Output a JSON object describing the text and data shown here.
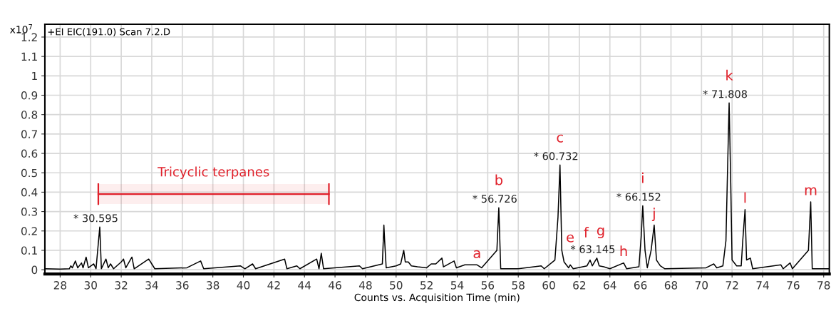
{
  "chart_data": {
    "type": "line",
    "title": "+EI EIC(191.0) Scan 7.2.D",
    "xlabel": "Counts vs. Acquisition Time (min)",
    "ylabel": "x10$^{7}$",
    "xlim": [
      27.0,
      78.37
    ],
    "ylim": [
      -0.022,
      1.266
    ],
    "xticks": [
      28,
      30,
      32,
      34,
      36,
      38,
      40,
      42,
      44,
      46,
      48,
      50,
      52,
      54,
      56,
      58,
      60,
      62,
      64,
      66,
      68,
      70,
      72,
      74,
      76,
      78
    ],
    "yticks": [
      0,
      0.1,
      0.2,
      0.3,
      0.4,
      0.5,
      0.6,
      0.7,
      0.8,
      0.9,
      1,
      1.1,
      1.2
    ],
    "grid": true,
    "marker": "none",
    "line_style": "solid",
    "series": [
      {
        "color": "#000000",
        "x": [
          27.0,
          28.0,
          28.6,
          28.7,
          28.8,
          29.0,
          29.15,
          29.4,
          29.5,
          29.7,
          29.85,
          30.2,
          30.35,
          30.595,
          30.7,
          31.0,
          31.15,
          31.3,
          31.5,
          32.0,
          32.15,
          32.3,
          32.7,
          32.85,
          33.8,
          34.0,
          34.2,
          36.3,
          37.2,
          37.4,
          39.8,
          40.1,
          40.6,
          40.8,
          42.7,
          42.85,
          43.5,
          43.7,
          44.8,
          44.95,
          45.1,
          45.25,
          47.6,
          47.8,
          49.1,
          49.2,
          49.25,
          49.35,
          50.0,
          50.3,
          50.5,
          50.6,
          50.8,
          51.0,
          51.4,
          52.0,
          52.3,
          52.6,
          53.0,
          53.1,
          53.8,
          53.95,
          54.5,
          55.3,
          55.6,
          56.6,
          56.726,
          56.85,
          58.0,
          59.5,
          59.7,
          60.4,
          60.6,
          60.732,
          60.85,
          61.0,
          61.3,
          61.4,
          61.6,
          62.5,
          62.7,
          62.85,
          63.145,
          63.3,
          63.6,
          64.0,
          64.9,
          65.1,
          65.9,
          66.05,
          66.152,
          66.3,
          66.45,
          66.7,
          66.9,
          67.05,
          67.3,
          67.6,
          70.3,
          70.8,
          71.0,
          71.4,
          71.6,
          71.7,
          71.808,
          71.9,
          72.0,
          72.3,
          72.6,
          72.7,
          72.85,
          72.95,
          73.2,
          73.35,
          75.2,
          75.35,
          75.8,
          75.95,
          77.0,
          77.15,
          77.25,
          78.37
        ],
        "values": [
          0.005,
          0.003,
          0.005,
          0.02,
          0.01,
          0.045,
          0.01,
          0.035,
          0.01,
          0.065,
          0.01,
          0.03,
          0.005,
          0.22,
          0.005,
          0.055,
          0.01,
          0.03,
          0.005,
          0.04,
          0.055,
          0.01,
          0.065,
          0.005,
          0.055,
          0.03,
          0.005,
          0.01,
          0.045,
          0.005,
          0.02,
          0.005,
          0.03,
          0.005,
          0.055,
          0.005,
          0.02,
          0.005,
          0.055,
          0.005,
          0.085,
          0.005,
          0.02,
          0.005,
          0.03,
          0.23,
          0.15,
          0.01,
          0.02,
          0.03,
          0.1,
          0.04,
          0.04,
          0.02,
          0.015,
          0.01,
          0.03,
          0.03,
          0.06,
          0.015,
          0.045,
          0.01,
          0.025,
          0.025,
          0.01,
          0.1,
          0.32,
          0.005,
          0.005,
          0.02,
          0.005,
          0.05,
          0.27,
          0.54,
          0.1,
          0.04,
          0.01,
          0.025,
          0.005,
          0.02,
          0.05,
          0.02,
          0.06,
          0.02,
          0.015,
          0.005,
          0.035,
          0.005,
          0.015,
          0.17,
          0.33,
          0.1,
          0.01,
          0.1,
          0.23,
          0.05,
          0.02,
          0.005,
          0.01,
          0.03,
          0.01,
          0.02,
          0.15,
          0.5,
          0.86,
          0.5,
          0.05,
          0.02,
          0.02,
          0.15,
          0.31,
          0.05,
          0.06,
          0.005,
          0.025,
          0.005,
          0.035,
          0.005,
          0.1,
          0.35,
          0.005,
          0.005
        ],
        "value_labels": [
          null,
          null,
          null,
          null,
          null,
          null,
          null,
          null,
          null,
          null,
          null,
          null,
          null,
          null,
          null,
          null,
          null,
          null,
          null,
          null,
          null,
          null,
          null,
          null,
          null,
          null,
          null,
          null,
          null,
          null,
          null,
          null,
          null,
          null,
          null,
          null,
          null,
          null,
          null,
          null,
          null,
          null,
          null,
          null,
          null,
          null,
          null,
          null,
          null,
          null,
          null,
          null,
          null,
          null,
          null,
          null,
          null,
          null,
          null,
          null,
          null,
          null,
          null,
          "a",
          null,
          null,
          "b",
          null,
          null,
          null,
          null,
          null,
          null,
          "c",
          null,
          null,
          null,
          "e",
          null,
          null,
          "f",
          null,
          "g",
          null,
          null,
          null,
          "h",
          null,
          null,
          null,
          "i",
          null,
          null,
          null,
          "j",
          null,
          null,
          null,
          null,
          null,
          null,
          null,
          null,
          null,
          "k",
          null,
          null,
          null,
          null,
          null,
          "l",
          null,
          null,
          null,
          null,
          null,
          null,
          null,
          null,
          "m",
          null,
          null
        ]
      }
    ],
    "bands": [
      {
        "axis": "x",
        "from": 30.5,
        "to": 45.6,
        "label": "Tricyclic terpanes",
        "color": "#e0202a"
      }
    ],
    "annotations": [
      {
        "text": "* 30.595",
        "x": 30.595,
        "y": 0.22
      },
      {
        "text": "* 56.726",
        "x": 56.726,
        "y": 0.32
      },
      {
        "text": "* 60.732",
        "x": 60.732,
        "y": 0.54
      },
      {
        "text": "* 63.145",
        "x": 63.145,
        "y": 0.06
      },
      {
        "text": "* 66.152",
        "x": 66.152,
        "y": 0.33
      },
      {
        "text": "* 71.808",
        "x": 71.808,
        "y": 0.86
      }
    ]
  }
}
